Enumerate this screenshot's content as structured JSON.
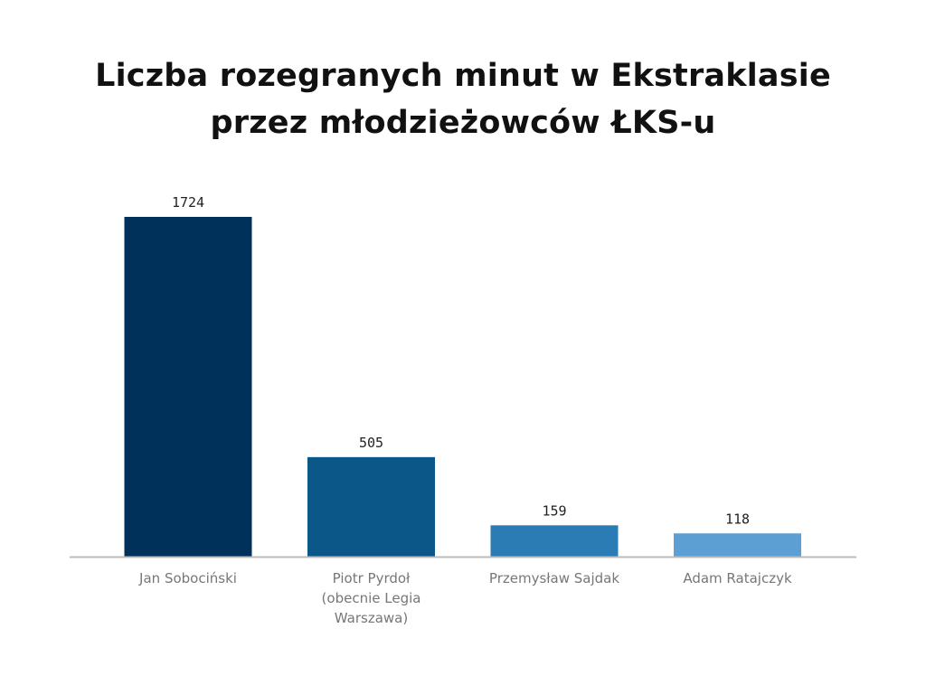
{
  "chart_data": {
    "type": "bar",
    "title_lines": [
      "Liczba rozegranych minut w Ekstraklasie",
      "przez młodzieżowców ŁKS-u"
    ],
    "categories": [
      [
        "Jan Sobociński"
      ],
      [
        "Piotr Pyrdoł",
        "(obecnie Legia",
        "Warszawa)"
      ],
      [
        "Przemysław Sajdak"
      ],
      [
        "Adam Ratajczyk"
      ]
    ],
    "values": [
      1724,
      505,
      159,
      118
    ],
    "data_labels": [
      "1724",
      "505",
      "159",
      "118"
    ],
    "bar_colors": [
      "#00315a",
      "#0b5788",
      "#2b7cb5",
      "#5b9fd3"
    ],
    "axis_color": "#bbbbbb",
    "xlabel": "",
    "ylabel": "",
    "ylim": [
      0,
      1724
    ],
    "grid": false,
    "legend": "none"
  }
}
